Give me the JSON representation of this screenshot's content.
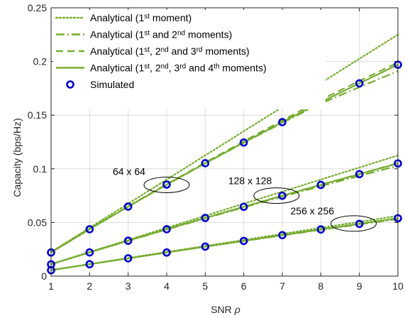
{
  "chart_data": {
    "type": "line",
    "xlabel": "SNR",
    "xlabel_symbol": "ρ",
    "ylabel": "Capacity (bps/Hz)",
    "xlim": [
      1,
      10
    ],
    "ylim": [
      0,
      0.25
    ],
    "xticks": [
      "1",
      "2",
      "3",
      "4",
      "5",
      "6",
      "7",
      "8",
      "9",
      "10"
    ],
    "yticks": [
      "0",
      "0.05",
      "0.1",
      "0.15",
      "0.2",
      "0.25"
    ],
    "grid": true,
    "legend_position": "top-left",
    "colors": {
      "line": "#77AC30",
      "marker": "#0000CC",
      "axis": "#262626",
      "grid": "#DCDCDC"
    },
    "x": [
      1,
      2,
      3,
      4,
      5,
      6,
      7,
      8,
      9,
      10
    ],
    "legend": [
      {
        "style": "dotted",
        "parts": [
          {
            "t": "Analytical (1",
            "s": false
          },
          {
            "t": "st",
            "s": true
          },
          {
            "t": " moment)",
            "s": false
          }
        ]
      },
      {
        "style": "dashdot",
        "parts": [
          {
            "t": "Analytical (1",
            "s": false
          },
          {
            "t": "st",
            "s": true
          },
          {
            "t": " and 2",
            "s": false
          },
          {
            "t": "nd",
            "s": true
          },
          {
            "t": " moments)",
            "s": false
          }
        ]
      },
      {
        "style": "dashed",
        "parts": [
          {
            "t": "Analytical (1",
            "s": false
          },
          {
            "t": "st",
            "s": true
          },
          {
            "t": ", 2",
            "s": false
          },
          {
            "t": "nd",
            "s": true
          },
          {
            "t": " and 3",
            "s": false
          },
          {
            "t": "rd",
            "s": true
          },
          {
            "t": " moments)",
            "s": false
          }
        ]
      },
      {
        "style": "solid",
        "parts": [
          {
            "t": "Analytical (1",
            "s": false
          },
          {
            "t": "st",
            "s": true
          },
          {
            "t": ", 2",
            "s": false
          },
          {
            "t": "nd",
            "s": true
          },
          {
            "t": ", 3",
            "s": false
          },
          {
            "t": "rd",
            "s": true
          },
          {
            "t": " and 4",
            "s": false
          },
          {
            "t": "th",
            "s": true
          },
          {
            "t": " moments)",
            "s": false
          }
        ]
      },
      {
        "style": "marker",
        "parts": [
          {
            "t": "Simulated",
            "s": false
          }
        ]
      }
    ],
    "groups": [
      {
        "label": "64 x 64",
        "ellipse_at": [
          4,
          0.085
        ],
        "first_moment": [
          0.0225,
          0.045,
          0.0675,
          0.09,
          0.1125,
          0.135,
          0.1575,
          0.18,
          0.2025,
          0.225
        ],
        "second_moment": [
          0.0222,
          0.0438,
          0.0648,
          0.0852,
          0.105,
          0.1242,
          0.1428,
          0.1608,
          0.1761,
          0.191
        ],
        "third_moment": [
          0.0222,
          0.0442,
          0.0651,
          0.0856,
          0.1058,
          0.1256,
          0.145,
          0.1642,
          0.1818,
          0.199
        ],
        "fourth_moment": [
          0.022,
          0.0437,
          0.0648,
          0.0853,
          0.1052,
          0.1245,
          0.1435,
          0.1621,
          0.1796,
          0.197
        ],
        "simulated": [
          0.022,
          0.0437,
          0.0648,
          0.0853,
          0.1052,
          0.1245,
          0.1435,
          0.1621,
          0.1796,
          0.197
        ]
      },
      {
        "label": "128 x 128",
        "ellipse_at": [
          6.85,
          0.075
        ],
        "first_moment": [
          0.0112,
          0.0225,
          0.0337,
          0.045,
          0.0562,
          0.0675,
          0.0787,
          0.09,
          0.1012,
          0.1125
        ],
        "second_moment": [
          0.0111,
          0.0221,
          0.0328,
          0.0434,
          0.0538,
          0.064,
          0.074,
          0.0838,
          0.0934,
          0.1028
        ],
        "third_moment": [
          0.0111,
          0.0222,
          0.0331,
          0.0438,
          0.0543,
          0.0647,
          0.075,
          0.0852,
          0.0952,
          0.1052
        ],
        "fourth_moment": [
          0.011,
          0.0221,
          0.033,
          0.0437,
          0.0542,
          0.0646,
          0.0749,
          0.085,
          0.095,
          0.105
        ],
        "simulated": [
          0.011,
          0.0221,
          0.033,
          0.0437,
          0.0542,
          0.0646,
          0.0749,
          0.085,
          0.095,
          0.105
        ]
      },
      {
        "label": "256 x 256",
        "ellipse_at": [
          8.85,
          0.049
        ],
        "first_moment": [
          0.0056,
          0.0112,
          0.0169,
          0.0225,
          0.0281,
          0.0337,
          0.0394,
          0.045,
          0.0506,
          0.0562
        ],
        "second_moment": [
          0.0056,
          0.0111,
          0.0166,
          0.022,
          0.0274,
          0.0327,
          0.0379,
          0.0431,
          0.0482,
          0.0532
        ],
        "third_moment": [
          0.0056,
          0.0111,
          0.0166,
          0.0221,
          0.0275,
          0.0329,
          0.0382,
          0.0435,
          0.0488,
          0.054
        ],
        "fourth_moment": [
          0.0055,
          0.0111,
          0.0166,
          0.022,
          0.0275,
          0.0328,
          0.0382,
          0.0435,
          0.0487,
          0.0539
        ],
        "simulated": [
          0.0055,
          0.0111,
          0.0166,
          0.022,
          0.0275,
          0.0328,
          0.0382,
          0.0435,
          0.0487,
          0.0539
        ]
      }
    ]
  }
}
